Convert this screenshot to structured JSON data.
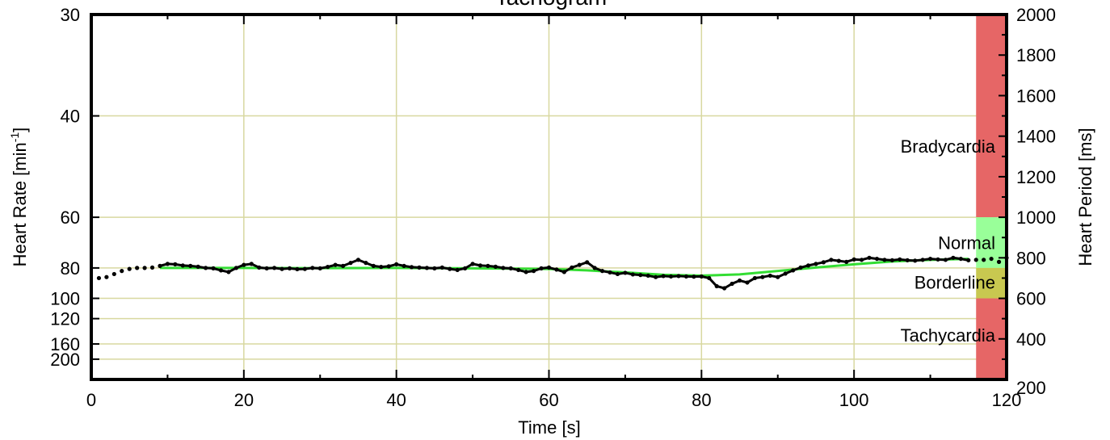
{
  "chart_data": {
    "type": "line",
    "title": "Tachogram",
    "xlabel": "Time [s]",
    "ylabel_left_main": "Heart Rate [min",
    "ylabel_left_sup": "-1",
    "ylabel_left_end": "]",
    "ylabel_right": "Heart Period [ms]",
    "xlim": [
      0,
      120
    ],
    "x_ticks": [
      0,
      20,
      40,
      60,
      80,
      100,
      120
    ],
    "x_minor_ticks": [
      10,
      30,
      50,
      70,
      90,
      110
    ],
    "y_right_lim_ms": [
      200,
      2000
    ],
    "y_right_ticks": [
      200,
      400,
      600,
      800,
      1000,
      1200,
      1400,
      1600,
      1800,
      2000
    ],
    "y_left_ticks_bpm": [
      30,
      40,
      60,
      80,
      100,
      120,
      160,
      200
    ],
    "grid": true,
    "zones": [
      {
        "name": "Bradycardia",
        "from_ms": 1000,
        "to_ms": 2000,
        "color": "#e66666"
      },
      {
        "name": "Normal",
        "from_ms": 750,
        "to_ms": 1000,
        "color": "#99ff99"
      },
      {
        "name": "Borderline",
        "from_ms": 600,
        "to_ms": 750,
        "color": "#c8c850"
      },
      {
        "name": "Tachycardia",
        "from_ms": 200,
        "to_ms": 600,
        "color": "#e66666"
      }
    ],
    "zone_band_x": [
      116,
      120
    ],
    "colors": {
      "grid": "#d8d8a0",
      "trend": "#33dd33",
      "data": "#000000",
      "frame": "#000000"
    },
    "series": [
      {
        "kind": "rr-intervals",
        "x": [
          1,
          2,
          3,
          4,
          5,
          6,
          7,
          8,
          9,
          10,
          11,
          12,
          13,
          14,
          15,
          16,
          17,
          18,
          19,
          20,
          21,
          22,
          23,
          24,
          25,
          26,
          27,
          28,
          29,
          30,
          31,
          32,
          33,
          34,
          35,
          36,
          37,
          38,
          39,
          40,
          41,
          42,
          43,
          44,
          45,
          46,
          47,
          48,
          49,
          50,
          51,
          52,
          53,
          54,
          55,
          56,
          57,
          58,
          59,
          60,
          61,
          62,
          63,
          64,
          65,
          66,
          67,
          68,
          69,
          70,
          71,
          72,
          73,
          74,
          75,
          76,
          77,
          78,
          79,
          80,
          81,
          82,
          83,
          84,
          85,
          86,
          87,
          88,
          89,
          90,
          91,
          92,
          93,
          94,
          95,
          96,
          97,
          98,
          99,
          100,
          101,
          102,
          103,
          104,
          105,
          106,
          107,
          108,
          109,
          110,
          111,
          112,
          113,
          114,
          115,
          116,
          117,
          118,
          119,
          120
        ],
        "y": [
          700,
          705,
          720,
          735,
          745,
          750,
          750,
          752,
          760,
          770,
          768,
          762,
          760,
          756,
          750,
          748,
          738,
          730,
          750,
          765,
          770,
          752,
          748,
          750,
          745,
          748,
          744,
          745,
          750,
          748,
          755,
          765,
          760,
          775,
          790,
          775,
          760,
          755,
          758,
          768,
          760,
          754,
          752,
          750,
          748,
          752,
          745,
          740,
          748,
          770,
          762,
          760,
          756,
          750,
          748,
          740,
          730,
          735,
          748,
          752,
          742,
          730,
          752,
          765,
          778,
          750,
          735,
          728,
          720,
          726,
          718,
          715,
          712,
          705,
          710,
          708,
          710,
          708,
          707,
          708,
          700,
          660,
          650,
          672,
          688,
          678,
          700,
          705,
          712,
          705,
          722,
          738,
          752,
          762,
          770,
          778,
          790,
          785,
          780,
          792,
          790,
          800,
          795,
          790,
          788,
          792,
          788,
          786,
          790,
          795,
          792,
          790,
          800,
          795,
          788,
          790,
          790,
          795,
          780,
          800
        ]
      },
      {
        "kind": "trend",
        "x": [
          9,
          20,
          30,
          40,
          50,
          60,
          65,
          70,
          75,
          80,
          85,
          90,
          95,
          100,
          105,
          110,
          115
        ],
        "y": [
          750,
          750,
          749,
          750,
          748,
          745,
          738,
          728,
          716,
          712,
          718,
          735,
          752,
          768,
          782,
          790,
          795
        ]
      }
    ]
  }
}
